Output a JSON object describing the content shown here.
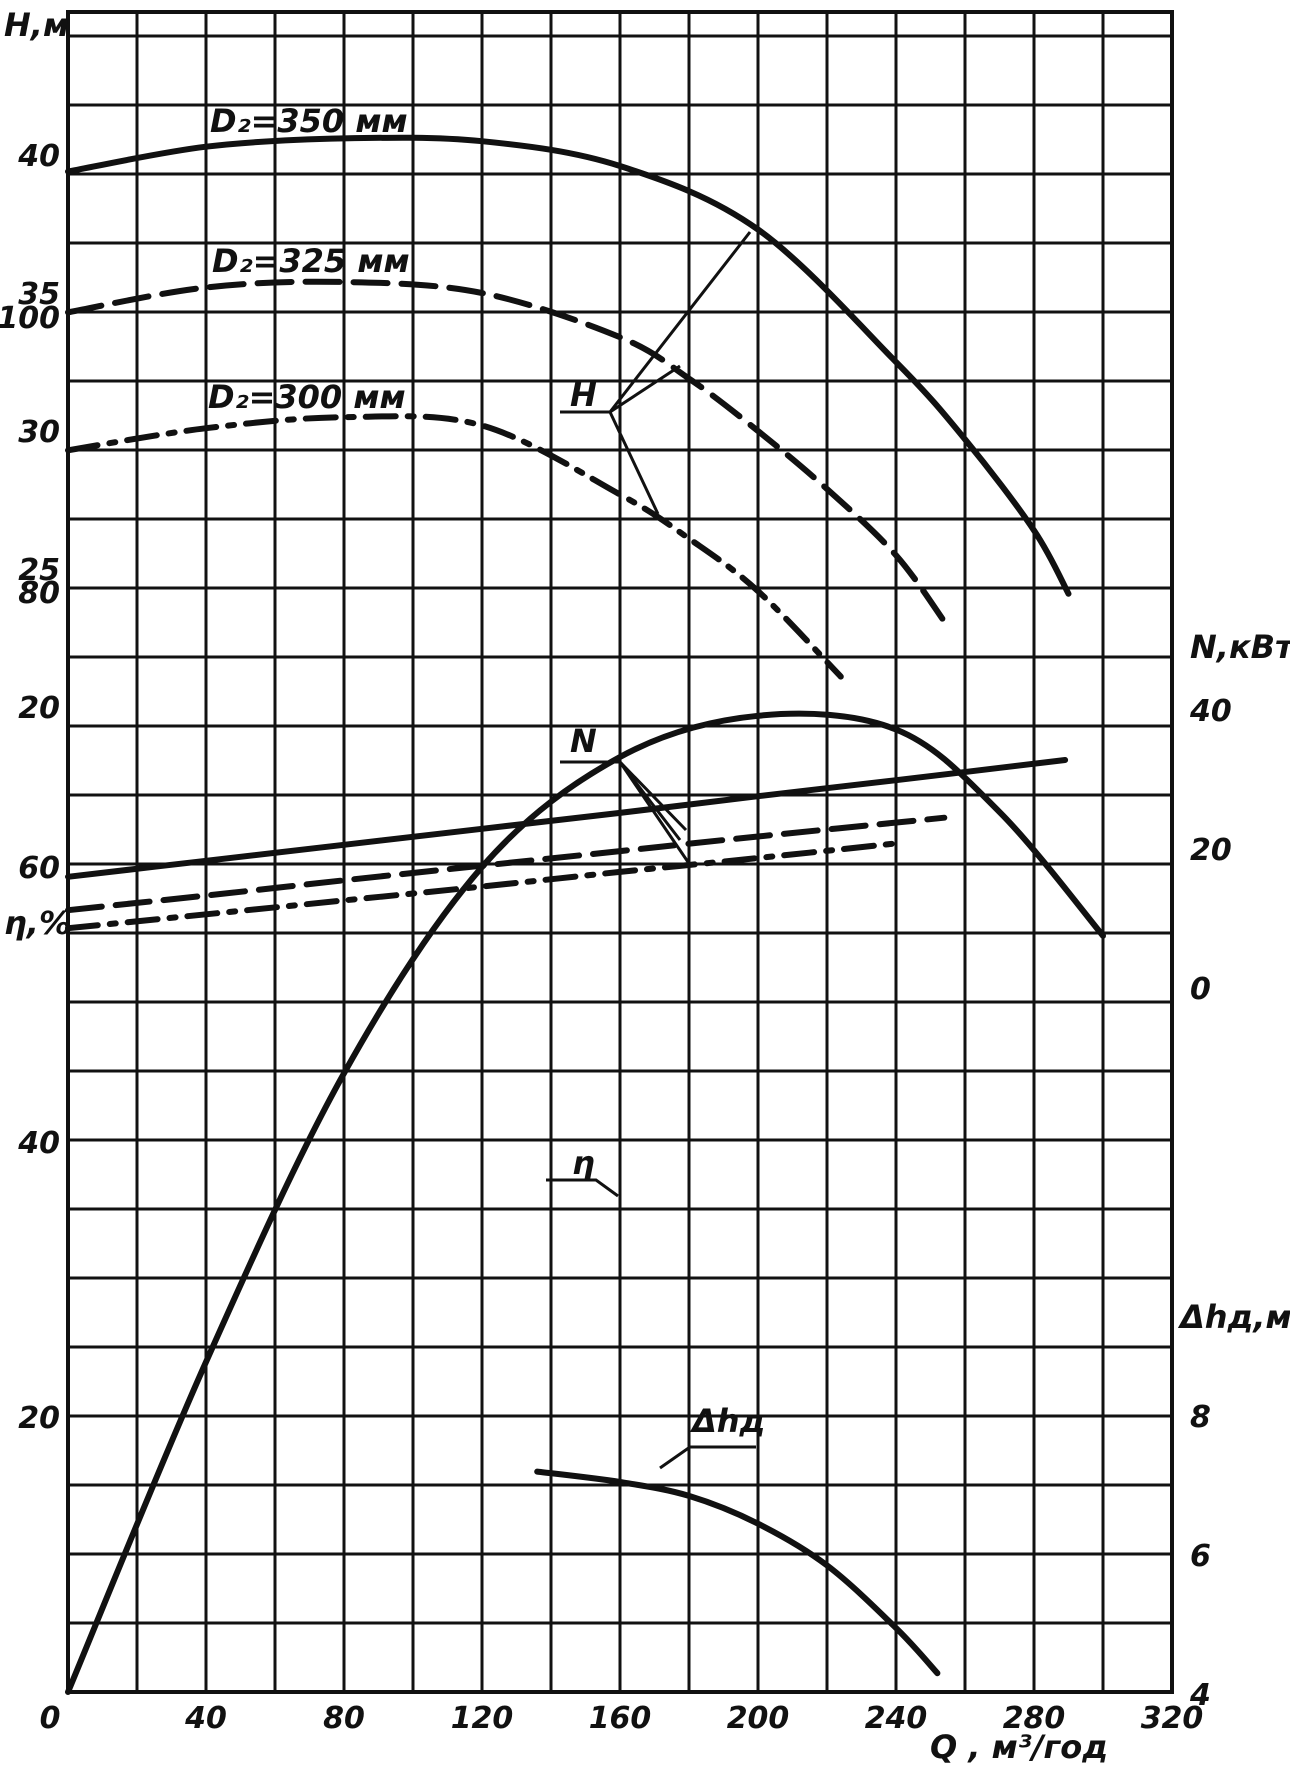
{
  "chart_data": {
    "type": "line",
    "x_axis": {
      "label": "Q , м³/год",
      "range": [
        0,
        320
      ],
      "ticks": [
        0,
        40,
        80,
        120,
        160,
        200,
        240,
        280,
        320
      ],
      "tick_labels": [
        "0",
        "40",
        "80",
        "120",
        "160",
        "200",
        "240",
        "280",
        "320"
      ]
    },
    "y_axes": {
      "head": {
        "label": "H,м",
        "side": "left",
        "range": [
          10,
          43
        ],
        "ticks": [
          20,
          25,
          30,
          35,
          40
        ],
        "tick_labels": [
          "20",
          "25",
          "30",
          "35",
          "40"
        ]
      },
      "efficiency": {
        "label": "η,%",
        "side": "left",
        "range": [
          0,
          110
        ],
        "ticks": [
          20,
          40,
          60,
          80,
          100
        ],
        "tick_labels": [
          "20",
          "40",
          "60",
          "80",
          "100"
        ]
      },
      "power": {
        "label": "N,кВт",
        "side": "right",
        "range": [
          0,
          40
        ],
        "ticks": [
          0,
          20,
          40
        ],
        "tick_labels": [
          "0",
          "20",
          "40"
        ]
      },
      "npsh": {
        "label": "Δhд,м",
        "side": "right",
        "range": [
          4,
          8
        ],
        "ticks": [
          4,
          6,
          8
        ],
        "tick_labels": [
          "4",
          "6",
          "8"
        ]
      }
    },
    "grid": true,
    "series": [
      {
        "name": "D₂=350 мм",
        "axis": "head",
        "style": "solid",
        "x": [
          0,
          40,
          80,
          120,
          160,
          200,
          240,
          260,
          280,
          290
        ],
        "y": [
          39.4,
          40.3,
          40.6,
          40.5,
          39.6,
          37.3,
          32.5,
          29.7,
          26.4,
          24.1
        ]
      },
      {
        "name": "D₂=325 мм",
        "axis": "head",
        "style": "dashed",
        "x": [
          0,
          40,
          80,
          120,
          160,
          180,
          200,
          220,
          240,
          254
        ],
        "y": [
          34.3,
          35.2,
          35.4,
          35.0,
          33.4,
          31.9,
          30.0,
          27.9,
          25.5,
          23.1
        ]
      },
      {
        "name": "D₂=300 мм",
        "axis": "head",
        "style": "dashdot",
        "x": [
          0,
          40,
          80,
          120,
          160,
          180,
          200,
          224
        ],
        "y": [
          29.3,
          30.1,
          30.5,
          30.2,
          27.7,
          26.1,
          24.2,
          21.1
        ]
      },
      {
        "name": "N (D₂=350)",
        "axis": "power",
        "style": "solid",
        "x": [
          0,
          40,
          80,
          120,
          160,
          200,
          240,
          289
        ],
        "y": [
          16.0,
          18.3,
          20.6,
          22.9,
          25.2,
          27.6,
          29.9,
          32.8
        ]
      },
      {
        "name": "N (D₂=325)",
        "axis": "power",
        "style": "dashed",
        "x": [
          0,
          40,
          80,
          120,
          160,
          200,
          254
        ],
        "y": [
          11.2,
          13.3,
          15.5,
          17.6,
          19.7,
          21.8,
          24.5
        ]
      },
      {
        "name": "N (D₂=300)",
        "axis": "power",
        "style": "dashdot",
        "x": [
          0,
          40,
          80,
          120,
          160,
          200,
          240
        ],
        "y": [
          8.6,
          10.6,
          12.6,
          14.6,
          16.7,
          18.7,
          20.8
        ]
      },
      {
        "name": "η",
        "axis": "efficiency",
        "style": "solid",
        "x": [
          0,
          40,
          80,
          120,
          160,
          200,
          240,
          270,
          300
        ],
        "y": [
          0,
          24,
          45,
          60,
          68,
          71,
          70,
          64,
          55
        ]
      },
      {
        "name": "Δhд",
        "axis": "npsh",
        "style": "solid",
        "x": [
          136,
          160,
          180,
          200,
          220,
          240,
          252
        ],
        "y": [
          7.2,
          7.05,
          6.85,
          6.45,
          5.85,
          4.95,
          4.3
        ]
      }
    ],
    "annotations": {
      "h_label": "H",
      "n_label": "N",
      "eta_label": "η",
      "npsh_label": "Δhд",
      "d350": "D₂=350 мм",
      "d325": "D₂=325 мм",
      "d300": "D₂=300 мм"
    }
  }
}
